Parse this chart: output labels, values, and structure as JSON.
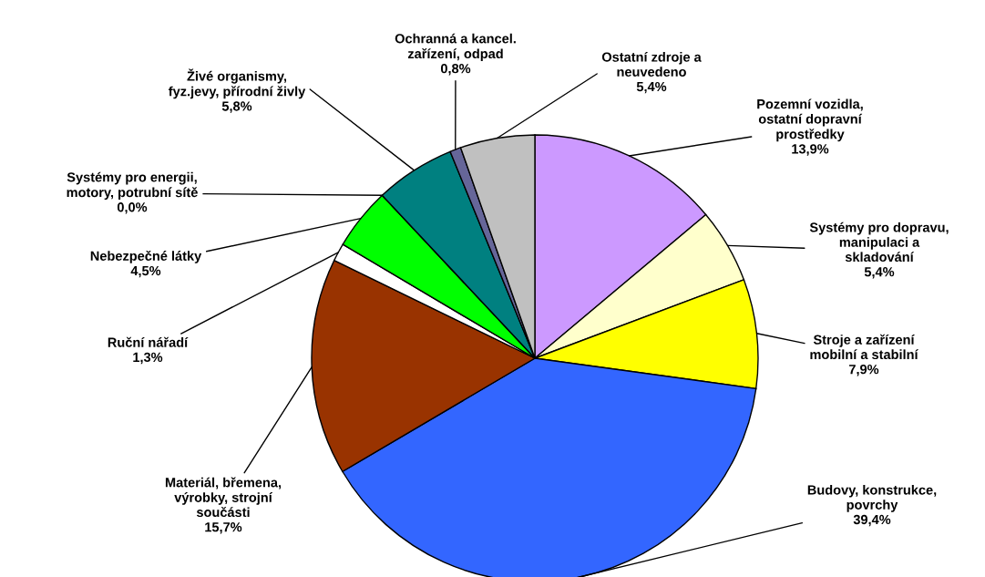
{
  "chart_data": {
    "type": "pie",
    "categories": [
      "Pozemní vozidla,\nostatní dopravní\nprostředky",
      "Systémy pro dopravu,\nmanipulaci a\nskladování",
      "Stroje a zařízení\nmobilní a stabilní",
      "Budovy, konstrukce,\npovrchy",
      "Materiál, břemena,\nvýrobky, strojní\nsoučásti",
      "Ruční nářadí",
      "Nebezpečné látky",
      "Systémy pro energii,\nmotory, potrubní sítě",
      "Živé organismy,\nfyz.jevy, přírodní živly",
      "Ochranná a kancel.\nzařízení, odpad",
      "Ostatní zdroje a\nneuvedeno"
    ],
    "values": [
      13.9,
      5.4,
      7.9,
      39.4,
      15.7,
      1.3,
      4.5,
      0.0,
      5.8,
      0.8,
      5.4
    ],
    "value_labels": [
      "13,9%",
      "5,4%",
      "7,9%",
      "39,4%",
      "15,7%",
      "1,3%",
      "4,5%",
      "0,0%",
      "5,8%",
      "0,8%",
      "5,4%"
    ],
    "colors": [
      "#cc99ff",
      "#ffffcc",
      "#ffff00",
      "#3366ff",
      "#993300",
      "#ffffff",
      "#00ff00",
      "#ff0000",
      "#008080",
      "#666699",
      "#c0c0c0"
    ]
  }
}
